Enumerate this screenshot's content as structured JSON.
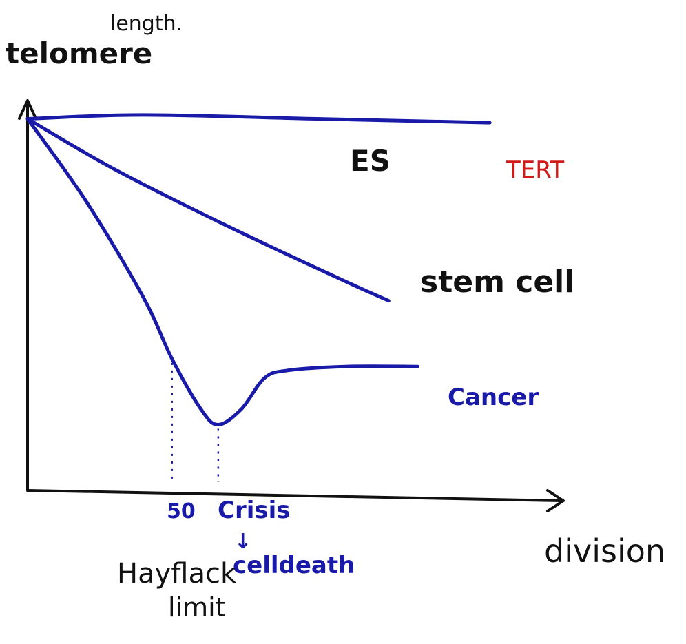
{
  "chart_data": {
    "type": "line",
    "ylabel": "telomere",
    "ylabel_suffix": "length.",
    "xlabel": "division",
    "ticks": {
      "fifty": {
        "label": "50",
        "x": 50
      },
      "crisis": {
        "label": "Crisis",
        "x": 66,
        "arrow": "↓",
        "note": "celldeath"
      }
    },
    "hayflick": {
      "line1": "Hayflack",
      "line2": "limit"
    },
    "xlim": [
      0,
      180
    ],
    "ylim": [
      0,
      100
    ],
    "series": [
      {
        "name": "ES",
        "label_extra": "TERT",
        "color": "#1a1aa8",
        "points": [
          [
            0,
            96
          ],
          [
            40,
            97
          ],
          [
            100,
            96
          ],
          [
            160,
            95
          ]
        ]
      },
      {
        "name": "stem cell",
        "color": "#1a1aa8",
        "points": [
          [
            0,
            96
          ],
          [
            30,
            83
          ],
          [
            70,
            68
          ],
          [
            110,
            54
          ],
          [
            125,
            49
          ]
        ]
      },
      {
        "name": "Cancer",
        "color": "#1a1aa8",
        "points": [
          [
            0,
            96
          ],
          [
            20,
            75
          ],
          [
            40,
            50
          ],
          [
            50,
            34
          ],
          [
            60,
            21
          ],
          [
            66,
            17
          ],
          [
            74,
            21
          ],
          [
            82,
            29
          ],
          [
            90,
            31
          ],
          [
            110,
            32
          ],
          [
            135,
            32
          ]
        ]
      }
    ]
  }
}
